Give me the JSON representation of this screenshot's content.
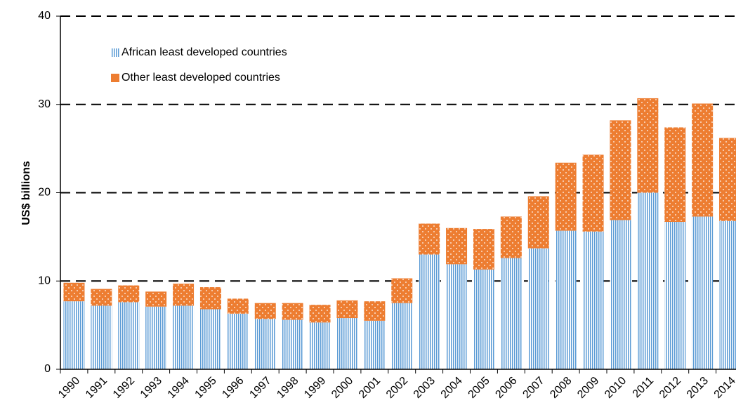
{
  "chart_data": {
    "type": "stacked_bar",
    "y_label": "US$ billions",
    "categories": [
      "1990",
      "1991",
      "1992",
      "1993",
      "1994",
      "1995",
      "1996",
      "1997",
      "1998",
      "1999",
      "2000",
      "2001",
      "2002",
      "2003",
      "2004",
      "2005",
      "2006",
      "2007",
      "2008",
      "2009",
      "2010",
      "2011",
      "2012",
      "2013",
      "2014"
    ],
    "series": [
      {
        "name": "African least developed countries",
        "color": "#5b9bd5",
        "values": [
          7.7,
          7.2,
          7.6,
          7.1,
          7.2,
          6.8,
          6.3,
          5.7,
          5.6,
          5.3,
          5.8,
          5.5,
          7.5,
          13.0,
          11.9,
          11.3,
          12.6,
          13.7,
          15.7,
          15.6,
          16.9,
          20.0,
          16.7,
          17.3,
          16.8
        ]
      },
      {
        "name": "Other least developed countries",
        "color": "#ed7d31",
        "values": [
          2.1,
          1.9,
          1.9,
          1.7,
          2.5,
          2.5,
          1.7,
          1.8,
          1.9,
          2.0,
          2.0,
          2.2,
          2.8,
          3.5,
          4.1,
          4.6,
          4.7,
          5.9,
          7.7,
          8.7,
          11.3,
          10.7,
          10.7,
          12.8,
          9.4
        ]
      }
    ],
    "ylim": [
      0,
      40
    ],
    "yticks": [
      0,
      10,
      20,
      30,
      40
    ],
    "grid": true
  }
}
